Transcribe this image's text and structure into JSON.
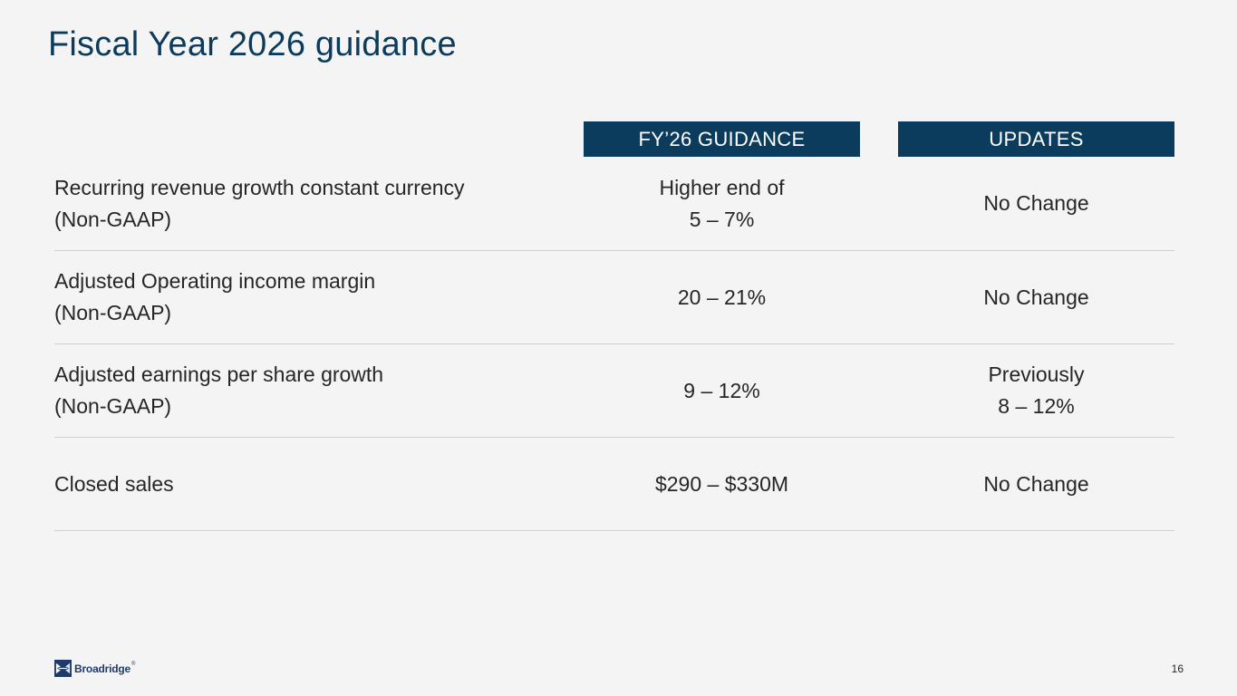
{
  "title": "Fiscal Year 2026 guidance",
  "headers": {
    "guidance": "FY’26 GUIDANCE",
    "updates": "UPDATES"
  },
  "rows": [
    {
      "metric_line1": "Recurring revenue growth constant currency",
      "metric_line2": "(Non-GAAP)",
      "guidance_line1": "Higher end of",
      "guidance_line2": "5 – 7%",
      "updates_line1": "No Change",
      "updates_line2": ""
    },
    {
      "metric_line1": "Adjusted Operating income margin",
      "metric_line2": "(Non-GAAP)",
      "guidance_line1": "20 – 21%",
      "guidance_line2": "",
      "updates_line1": "No Change",
      "updates_line2": ""
    },
    {
      "metric_line1": "Adjusted earnings per share growth",
      "metric_line2": "(Non-GAAP)",
      "guidance_line1": "9 – 12%",
      "guidance_line2": "",
      "updates_line1": "Previously",
      "updates_line2": "8 – 12%"
    },
    {
      "metric_line1": "Closed sales",
      "metric_line2": "",
      "guidance_line1": "$290 – $330M",
      "guidance_line2": "",
      "updates_line1": "No Change",
      "updates_line2": ""
    }
  ],
  "footer": {
    "logo_text": "Broadridge",
    "logo_tm": "®",
    "logo_icon": "broadridge-logo-icon",
    "page_number": "16"
  },
  "colors": {
    "brand_navy": "#0b3c5d",
    "background": "#f4f4f4",
    "divider": "#d0d0d0"
  }
}
